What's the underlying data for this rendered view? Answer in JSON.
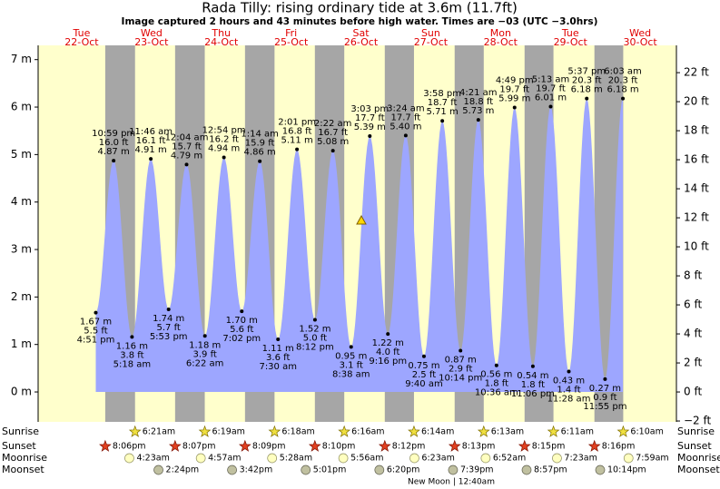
{
  "header": {
    "title": "Rada Tilly: rising  ordinary tide at 3.6m (11.7ft)",
    "subtitle": "Image captured 2 hours and 43 minutes before high water. Times are −03 (UTC −3.0hrs)"
  },
  "axis": {
    "ylim": [
      -0.63,
      7.3
    ],
    "yticks": [
      {
        "value": 0,
        "label": "0 m"
      },
      {
        "value": 1,
        "label": "1 m"
      },
      {
        "value": 2,
        "label": "2 m"
      },
      {
        "value": 3,
        "label": "3 m"
      },
      {
        "value": 4,
        "label": "4 m"
      },
      {
        "value": 5,
        "label": "5 m"
      },
      {
        "value": 6,
        "label": "6 m"
      },
      {
        "value": 7,
        "label": "7 m"
      }
    ],
    "y2lim": [
      -2.06,
      23.88
    ],
    "y2ticks": [
      {
        "value": -2,
        "label": "−2 ft"
      },
      {
        "value": 0,
        "label": "0 ft"
      },
      {
        "value": 2,
        "label": "2 ft"
      },
      {
        "value": 4,
        "label": "4 ft"
      },
      {
        "value": 6,
        "label": "6 ft"
      },
      {
        "value": 8,
        "label": "8 ft"
      },
      {
        "value": 10,
        "label": "10 ft"
      },
      {
        "value": 12,
        "label": "12 ft"
      },
      {
        "value": 14,
        "label": "14 ft"
      },
      {
        "value": 16,
        "label": "16 ft"
      },
      {
        "value": 18,
        "label": "18 ft"
      },
      {
        "value": 20,
        "label": "20 ft"
      },
      {
        "value": 22,
        "label": "22 ft"
      }
    ]
  },
  "days": [
    {
      "name": "Tue",
      "date": "22-Oct",
      "sunset": "8:06pm"
    },
    {
      "name": "Wed",
      "date": "23-Oct",
      "sunrise": "6:21am",
      "sunset": "8:07pm",
      "moonrise": "4:23am",
      "moonset": "2:24pm"
    },
    {
      "name": "Thu",
      "date": "24-Oct",
      "sunrise": "6:19am",
      "sunset": "8:09pm",
      "moonrise": "4:57am",
      "moonset": "3:42pm"
    },
    {
      "name": "Fri",
      "date": "25-Oct",
      "sunrise": "6:18am",
      "sunset": "8:10pm",
      "moonrise": "5:28am",
      "moonset": "5:01pm"
    },
    {
      "name": "Sat",
      "date": "26-Oct",
      "sunrise": "6:16am",
      "sunset": "8:12pm",
      "moonrise": "5:56am",
      "moonset": "6:20pm"
    },
    {
      "name": "Sun",
      "date": "27-Oct",
      "sunrise": "6:14am",
      "sunset": "8:13pm",
      "moonrise": "6:23am",
      "moonset": "7:39pm"
    },
    {
      "name": "Mon",
      "date": "28-Oct",
      "sunrise": "6:13am",
      "sunset": "8:15pm",
      "moonrise": "6:52am",
      "moonset": "8:57pm"
    },
    {
      "name": "Tue",
      "date": "29-Oct",
      "sunrise": "6:11am",
      "sunset": "8:16pm",
      "moonrise": "7:23am",
      "moonset": "10:14pm"
    },
    {
      "name": "Wed",
      "date": "30-Oct",
      "sunrise": "6:10am",
      "moonrise": "7:59am"
    }
  ],
  "rows": {
    "sunrise": "Sunrise",
    "sunset": "Sunset",
    "moonrise": "Moonrise",
    "moonset": "Moonset"
  },
  "moon_phase": "New Moon | 12:40am",
  "tides": [
    {
      "time": "4:51 pm",
      "ft": "5.5 ft",
      "m": "1.67 m"
    },
    {
      "time": "10:59 pm",
      "ft": "16.0 ft",
      "m": "4.87 m"
    },
    {
      "time": "5:18 am",
      "ft": "3.8 ft",
      "m": "1.16 m"
    },
    {
      "time": "11:46 am",
      "ft": "16.1 ft",
      "m": "4.91 m"
    },
    {
      "time": "5:53 pm",
      "ft": "5.7 ft",
      "m": "1.74 m"
    },
    {
      "time": "12:04 am",
      "ft": "15.7 ft",
      "m": "4.79 m"
    },
    {
      "time": "6:22 am",
      "ft": "3.9 ft",
      "m": "1.18 m"
    },
    {
      "time": "12:54 pm",
      "ft": "16.2 ft",
      "m": "4.94 m"
    },
    {
      "time": "7:02 pm",
      "ft": "5.6 ft",
      "m": "1.70 m"
    },
    {
      "time": "1:14 am",
      "ft": "15.9 ft",
      "m": "4.86 m"
    },
    {
      "time": "7:30 am",
      "ft": "3.6 ft",
      "m": "1.11 m"
    },
    {
      "time": "2:01 pm",
      "ft": "16.8 ft",
      "m": "5.11 m"
    },
    {
      "time": "8:12 pm",
      "ft": "5.0 ft",
      "m": "1.52 m"
    },
    {
      "time": "2:22 am",
      "ft": "16.7 ft",
      "m": "5.08 m"
    },
    {
      "time": "8:38 am",
      "ft": "3.1 ft",
      "m": "0.95 m"
    },
    {
      "time": "3:03 pm",
      "ft": "17.7 ft",
      "m": "5.39 m"
    },
    {
      "time": "9:16 pm",
      "ft": "4.0 ft",
      "m": "1.22 m"
    },
    {
      "time": "3:24 am",
      "ft": "17.7 ft",
      "m": "5.40 m"
    },
    {
      "time": "9:40 am",
      "ft": "2.5 ft",
      "m": "0.75 m"
    },
    {
      "time": "3:58 pm",
      "ft": "18.7 ft",
      "m": "5.71 m"
    },
    {
      "time": "10:14 pm",
      "ft": "2.9 ft",
      "m": "0.87 m"
    },
    {
      "time": "4:21 am",
      "ft": "18.8 ft",
      "m": "5.73 m"
    },
    {
      "time": "10:36 am",
      "ft": "1.8 ft",
      "m": "0.56 m"
    },
    {
      "time": "4:49 pm",
      "ft": "19.7 ft",
      "m": "5.99 m"
    },
    {
      "time": "11:06 pm",
      "ft": "1.8 ft",
      "m": "0.54 m"
    },
    {
      "time": "5:13 am",
      "ft": "19.7 ft",
      "m": "6.01 m"
    },
    {
      "time": "11:28 am",
      "ft": "1.4 ft",
      "m": "0.43 m"
    },
    {
      "time": "5:37 pm",
      "ft": "20.3 ft",
      "m": "6.18 m"
    },
    {
      "time": "11:55 pm",
      "ft": "0.9 ft",
      "m": "0.27 m"
    },
    {
      "time": "6:03 am",
      "ft": "20.3 ft",
      "m": "6.18 m"
    }
  ]
}
